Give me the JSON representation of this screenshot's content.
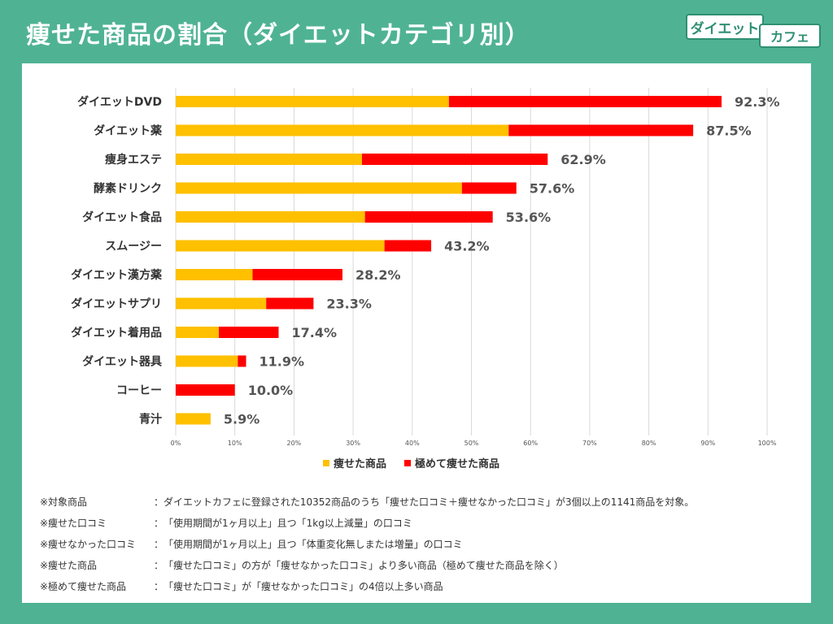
{
  "title": "痩せた商品の割合（ダイエットカテゴリ別）",
  "logo": {
    "main": "ダイエット",
    "sub": "カフェ"
  },
  "colors": {
    "background": "#4fb393",
    "slim": "#ffc000",
    "very_slim": "#ff0000"
  },
  "chart_data": {
    "type": "bar",
    "orientation": "horizontal",
    "stacked": true,
    "categories": [
      "ダイエットDVD",
      "ダイエット薬",
      "痩身エステ",
      "酵素ドリンク",
      "ダイエット食品",
      "スムージー",
      "ダイエット漢方薬",
      "ダイエットサプリ",
      "ダイエット着用品",
      "ダイエット器具",
      "コーヒー",
      "青汁"
    ],
    "series": [
      {
        "name": "痩せた商品",
        "color": "#ffc000",
        "values": [
          46.2,
          56.3,
          31.5,
          48.4,
          32.0,
          35.3,
          13.0,
          15.3,
          7.3,
          10.5,
          0,
          5.9
        ]
      },
      {
        "name": "極めて痩せた商品",
        "color": "#ff0000",
        "values": [
          46.1,
          31.2,
          31.4,
          9.2,
          21.6,
          7.9,
          15.2,
          8.0,
          10.1,
          1.4,
          10.0,
          0
        ]
      }
    ],
    "totals": [
      "92.3%",
      "87.5%",
      "62.9%",
      "57.6%",
      "53.6%",
      "43.2%",
      "28.2%",
      "23.3%",
      "17.4%",
      "11.9%",
      "10.0%",
      "5.9%"
    ],
    "xlim": [
      0,
      100
    ],
    "xticks": [
      "0%",
      "10%",
      "20%",
      "30%",
      "40%",
      "50%",
      "60%",
      "70%",
      "80%",
      "90%",
      "100%"
    ],
    "grid": true,
    "legend": "bottom-center"
  },
  "notes": [
    {
      "key": "※対象商品",
      "sep": "：",
      "value": "ダイエットカフェに登録された10352商品のうち「痩せた口コミ＋痩せなかった口コミ」が3個以上の1141商品を対象。"
    },
    {
      "key": "※痩せた口コミ",
      "sep": "：",
      "value": "「使用期間が1ヶ月以上」且つ「1kg以上減量」の口コミ"
    },
    {
      "key": "※痩せなかった口コミ",
      "sep": "：",
      "value": "「使用期間が1ヶ月以上」且つ「体重変化無しまたは増量」の口コミ"
    },
    {
      "key": "※痩せた商品",
      "sep": "：",
      "value": "「痩せた口コミ」の方が「痩せなかった口コミ」より多い商品（極めて痩せた商品を除く）"
    },
    {
      "key": "※極めて痩せた商品",
      "sep": "：",
      "value": "「痩せた口コミ」が「痩せなかった口コミ」の4倍以上多い商品"
    }
  ]
}
